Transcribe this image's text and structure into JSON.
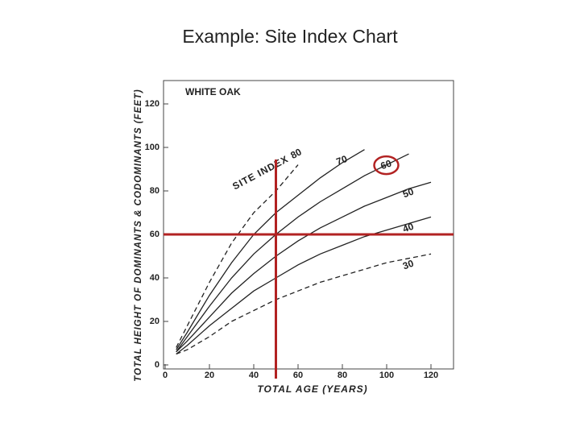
{
  "chart_data": {
    "type": "line",
    "title": "Example: Site Index Chart",
    "subtitle": "WHITE OAK",
    "x_label": "TOTAL AGE (YEARS)",
    "y_label": "TOTAL HEIGHT OF DOMINANTS & CODOMINANTS (FEET)",
    "curve_label_prefix": "SITE INDEX",
    "x": [
      5,
      10,
      20,
      30,
      40,
      50,
      60,
      70,
      80,
      90,
      100,
      110,
      120
    ],
    "series": [
      {
        "name": "80",
        "color": "#222222",
        "dashed": true,
        "values": [
          8,
          18,
          38,
          56,
          70,
          80,
          92,
          null,
          null,
          null,
          null,
          null,
          null
        ]
      },
      {
        "name": "70",
        "color": "#222222",
        "dashed": false,
        "values": [
          7,
          15,
          32,
          47,
          60,
          70,
          78,
          86,
          93,
          99,
          null,
          null,
          null
        ]
      },
      {
        "name": "60",
        "color": "#222222",
        "dashed": false,
        "values": [
          6,
          13,
          27,
          40,
          51,
          60,
          68,
          75,
          81,
          87,
          92,
          97,
          null
        ]
      },
      {
        "name": "50",
        "color": "#222222",
        "dashed": false,
        "values": [
          6,
          11,
          22,
          33,
          42,
          50,
          57,
          63,
          68,
          73,
          77,
          81,
          84
        ]
      },
      {
        "name": "40",
        "color": "#222222",
        "dashed": false,
        "values": [
          5,
          9,
          18,
          26,
          34,
          40,
          46,
          51,
          55,
          59,
          62,
          65,
          68
        ]
      },
      {
        "name": "30",
        "color": "#222222",
        "dashed": true,
        "values": [
          5,
          7,
          13,
          20,
          25,
          30,
          34,
          38,
          41,
          44,
          47,
          49,
          51
        ]
      }
    ],
    "highlight_series": 2,
    "reference": {
      "x": 50,
      "y": 60,
      "color": "#b22222"
    },
    "xlim": [
      0,
      130
    ],
    "ylim": [
      0,
      130
    ],
    "xticks": [
      0,
      20,
      40,
      60,
      80,
      100,
      120
    ],
    "yticks": [
      0,
      20,
      40,
      60,
      80,
      100,
      120
    ]
  }
}
